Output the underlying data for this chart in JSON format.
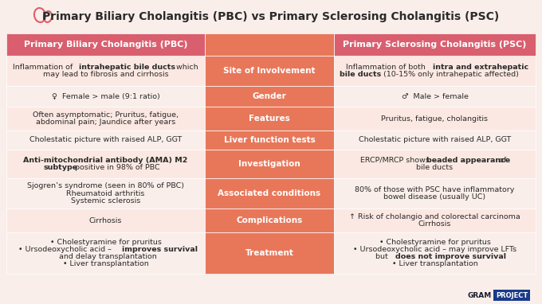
{
  "title": "Primary Biliary Cholangitis (PBC) vs Primary Sclerosing Cholangitis (PSC)",
  "bg_color": "#f9eeea",
  "header_left": "Primary Biliary Cholangitis (PBC)",
  "header_right": "Primary Sclerosing Cholangitis (PSC)",
  "header_color": "#d95f6e",
  "center_color": "#e8775a",
  "row_colors": [
    "#fce8e2",
    "#f9eeea"
  ],
  "rows": [
    {
      "center": "Site of Involvement",
      "left_plain": "Inflammation of ",
      "left_bold": "intrahepatic bile ducts",
      "left_rest": " which\nmay lead to fibrosis and cirrhosis",
      "left_lines": [
        [
          [
            "Inflammation of ",
            false
          ],
          [
            "intrahepatic bile ducts",
            true
          ],
          [
            " which",
            false
          ]
        ],
        [
          [
            "may lead to fibrosis and cirrhosis",
            false
          ]
        ]
      ],
      "right_lines": [
        [
          [
            "Inflammation of both ",
            false
          ],
          [
            "intra and extrahepatic",
            true
          ]
        ],
        [
          [
            "bile ducts",
            true
          ],
          [
            " (10-15% only intrahepatic affected)",
            false
          ]
        ]
      ]
    },
    {
      "center": "Gender",
      "left_lines": [
        [
          [
            "♀  Female > male (9:1 ratio)",
            false
          ]
        ]
      ],
      "right_lines": [
        [
          [
            "♂  Male > female",
            false
          ]
        ]
      ]
    },
    {
      "center": "Features",
      "left_lines": [
        [
          [
            "Often asymptomatic; Pruritus, fatigue,",
            false
          ]
        ],
        [
          [
            "abdominal pain; Jaundice after years",
            false
          ]
        ]
      ],
      "right_lines": [
        [
          [
            "Pruritus, fatigue, cholangitis",
            false
          ]
        ]
      ]
    },
    {
      "center": "Liver function tests",
      "left_lines": [
        [
          [
            "Cholestatic picture with raised ALP, GGT",
            false
          ]
        ]
      ],
      "right_lines": [
        [
          [
            "Cholestatic picture with raised ALP, GGT",
            false
          ]
        ]
      ]
    },
    {
      "center": "Investigation",
      "left_lines": [
        [
          [
            "Anti-mitochondrial antibody (AMA) M2",
            true
          ]
        ],
        [
          [
            "subtype",
            true
          ],
          [
            " positive in 98% of PBC",
            false
          ]
        ]
      ],
      "right_lines": [
        [
          [
            "ERCP/MRCP shows ",
            false
          ],
          [
            "beaded appearance",
            true
          ],
          [
            " of",
            false
          ]
        ],
        [
          [
            "bile ducts",
            false
          ]
        ]
      ]
    },
    {
      "center": "Associated conditions",
      "left_lines": [
        [
          [
            "Sjogren’s syndrome (seen in 80% of PBC)",
            false
          ]
        ],
        [
          [
            "Rheumatoid arthritis",
            false
          ]
        ],
        [
          [
            "Systemic sclerosis",
            false
          ]
        ]
      ],
      "right_lines": [
        [
          [
            "80% of those with PSC have inflammatory",
            false
          ]
        ],
        [
          [
            "bowel disease (usually UC)",
            false
          ]
        ]
      ]
    },
    {
      "center": "Complications",
      "left_lines": [
        [
          [
            "Cirrhosis",
            false
          ]
        ]
      ],
      "right_lines": [
        [
          [
            "↑ Risk of cholangio and colorectal carcinoma",
            false
          ]
        ],
        [
          [
            "Cirrhosis",
            false
          ]
        ]
      ]
    },
    {
      "center": "Treatment",
      "left_lines": [
        [
          [
            "• Cholestyramine for pruritus",
            false
          ]
        ],
        [
          [
            "• Ursodeoxycholic acid – ",
            false
          ],
          [
            "improves survival",
            true
          ]
        ],
        [
          [
            "  and delay transplantation",
            false
          ]
        ],
        [
          [
            "• Liver transplantation",
            false
          ]
        ]
      ],
      "right_lines": [
        [
          [
            "• Cholestyramine for pruritus",
            false
          ]
        ],
        [
          [
            "• Ursodeoxycholic acid – may improve LFTs",
            false
          ]
        ],
        [
          [
            "  but ",
            false
          ],
          [
            "does not improve survival",
            true
          ]
        ],
        [
          [
            "• Liver transplantation",
            false
          ]
        ]
      ]
    }
  ]
}
